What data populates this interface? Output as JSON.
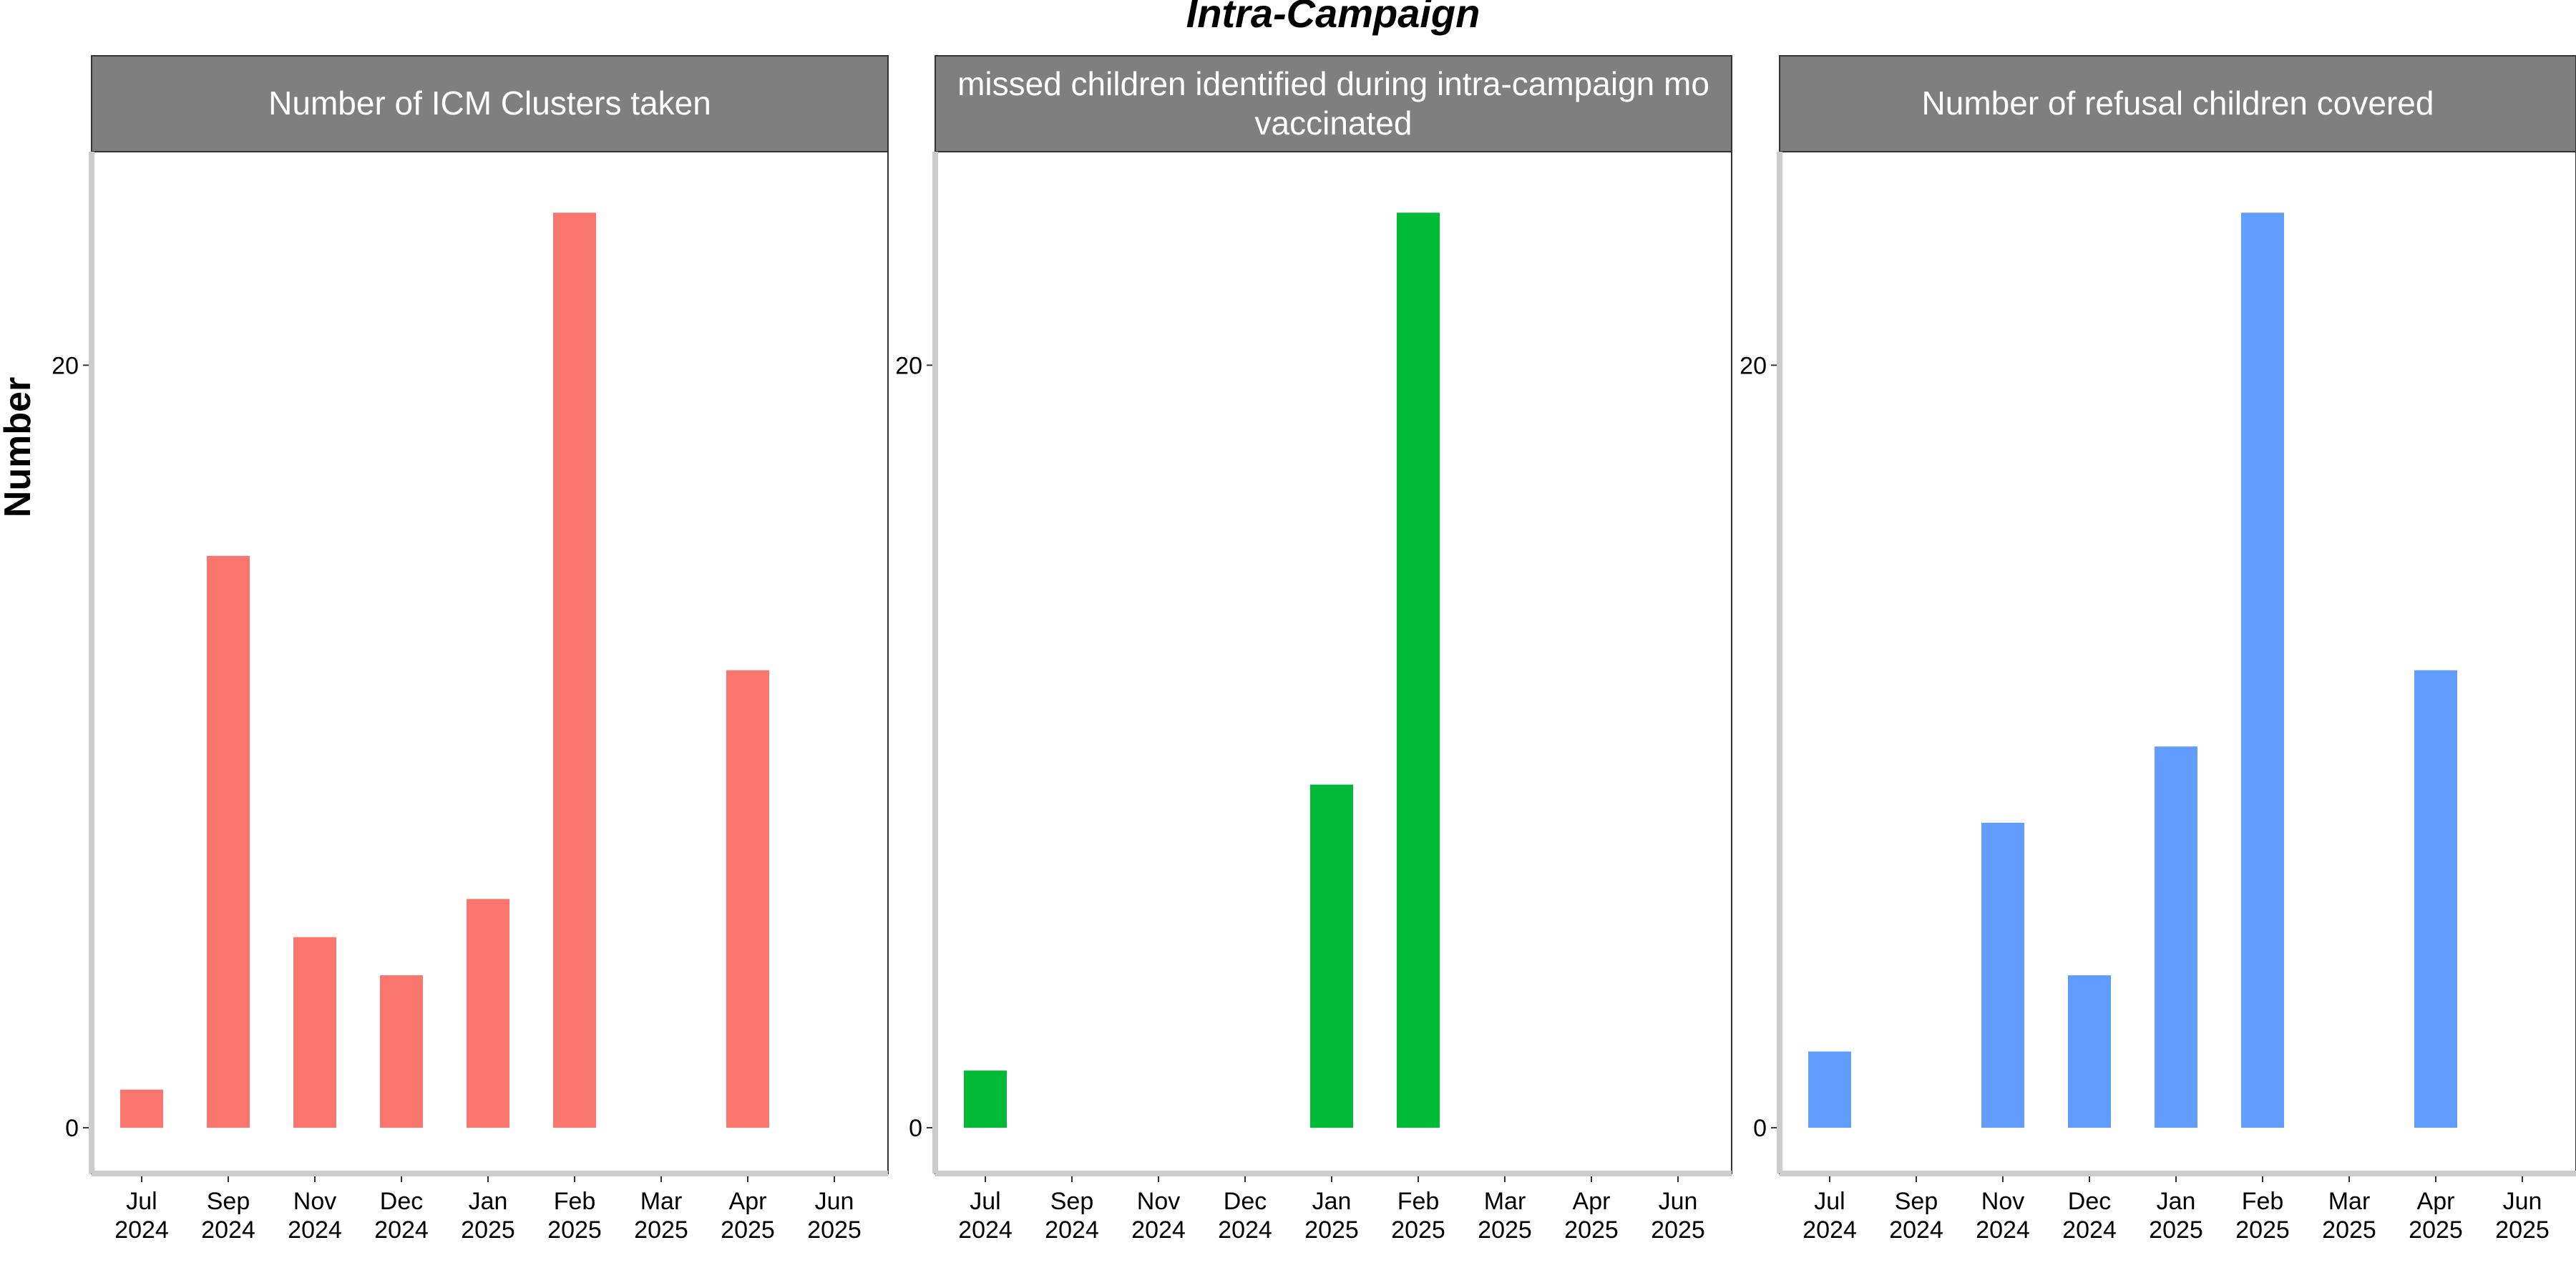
{
  "title": "Intra-Campaign",
  "ylabel": "Number",
  "chart_data": {
    "type": "bar",
    "title": "Intra-Campaign",
    "ylabel": "Number",
    "ylim": [
      -1.2,
      25.6
    ],
    "yticks": [
      0,
      20
    ],
    "categories": [
      "Jul 2024",
      "Sep 2024",
      "Nov 2024",
      "Dec 2024",
      "Jan 2025",
      "Feb 2025",
      "Mar 2025",
      "Apr 2025",
      "Jun 2025"
    ],
    "tick_labels": [
      {
        "line1": "Jul",
        "line2": "2024"
      },
      {
        "line1": "Sep",
        "line2": "2024"
      },
      {
        "line1": "Nov",
        "line2": "2024"
      },
      {
        "line1": "Dec",
        "line2": "2024"
      },
      {
        "line1": "Jan",
        "line2": "2025"
      },
      {
        "line1": "Feb",
        "line2": "2025"
      },
      {
        "line1": "Mar",
        "line2": "2025"
      },
      {
        "line1": "Apr",
        "line2": "2025"
      },
      {
        "line1": "Jun",
        "line2": "2025"
      }
    ],
    "grid": false,
    "legend": "none",
    "panels": [
      {
        "title_lines": [
          "Number of ICM Clusters taken"
        ],
        "color": "#F8766D",
        "values": [
          1,
          15,
          5,
          4,
          6,
          24,
          0,
          12,
          0
        ]
      },
      {
        "title_lines": [
          "missed children identified during intra-campaign mo",
          "vaccinated"
        ],
        "color": "#00BA38",
        "values": [
          1.5,
          0,
          0,
          0,
          9,
          24,
          0,
          0,
          0
        ]
      },
      {
        "title_lines": [
          "Number of refusal children covered"
        ],
        "color": "#619CFF",
        "values": [
          2,
          0,
          8,
          4,
          10,
          24,
          0,
          12,
          0
        ]
      }
    ]
  }
}
